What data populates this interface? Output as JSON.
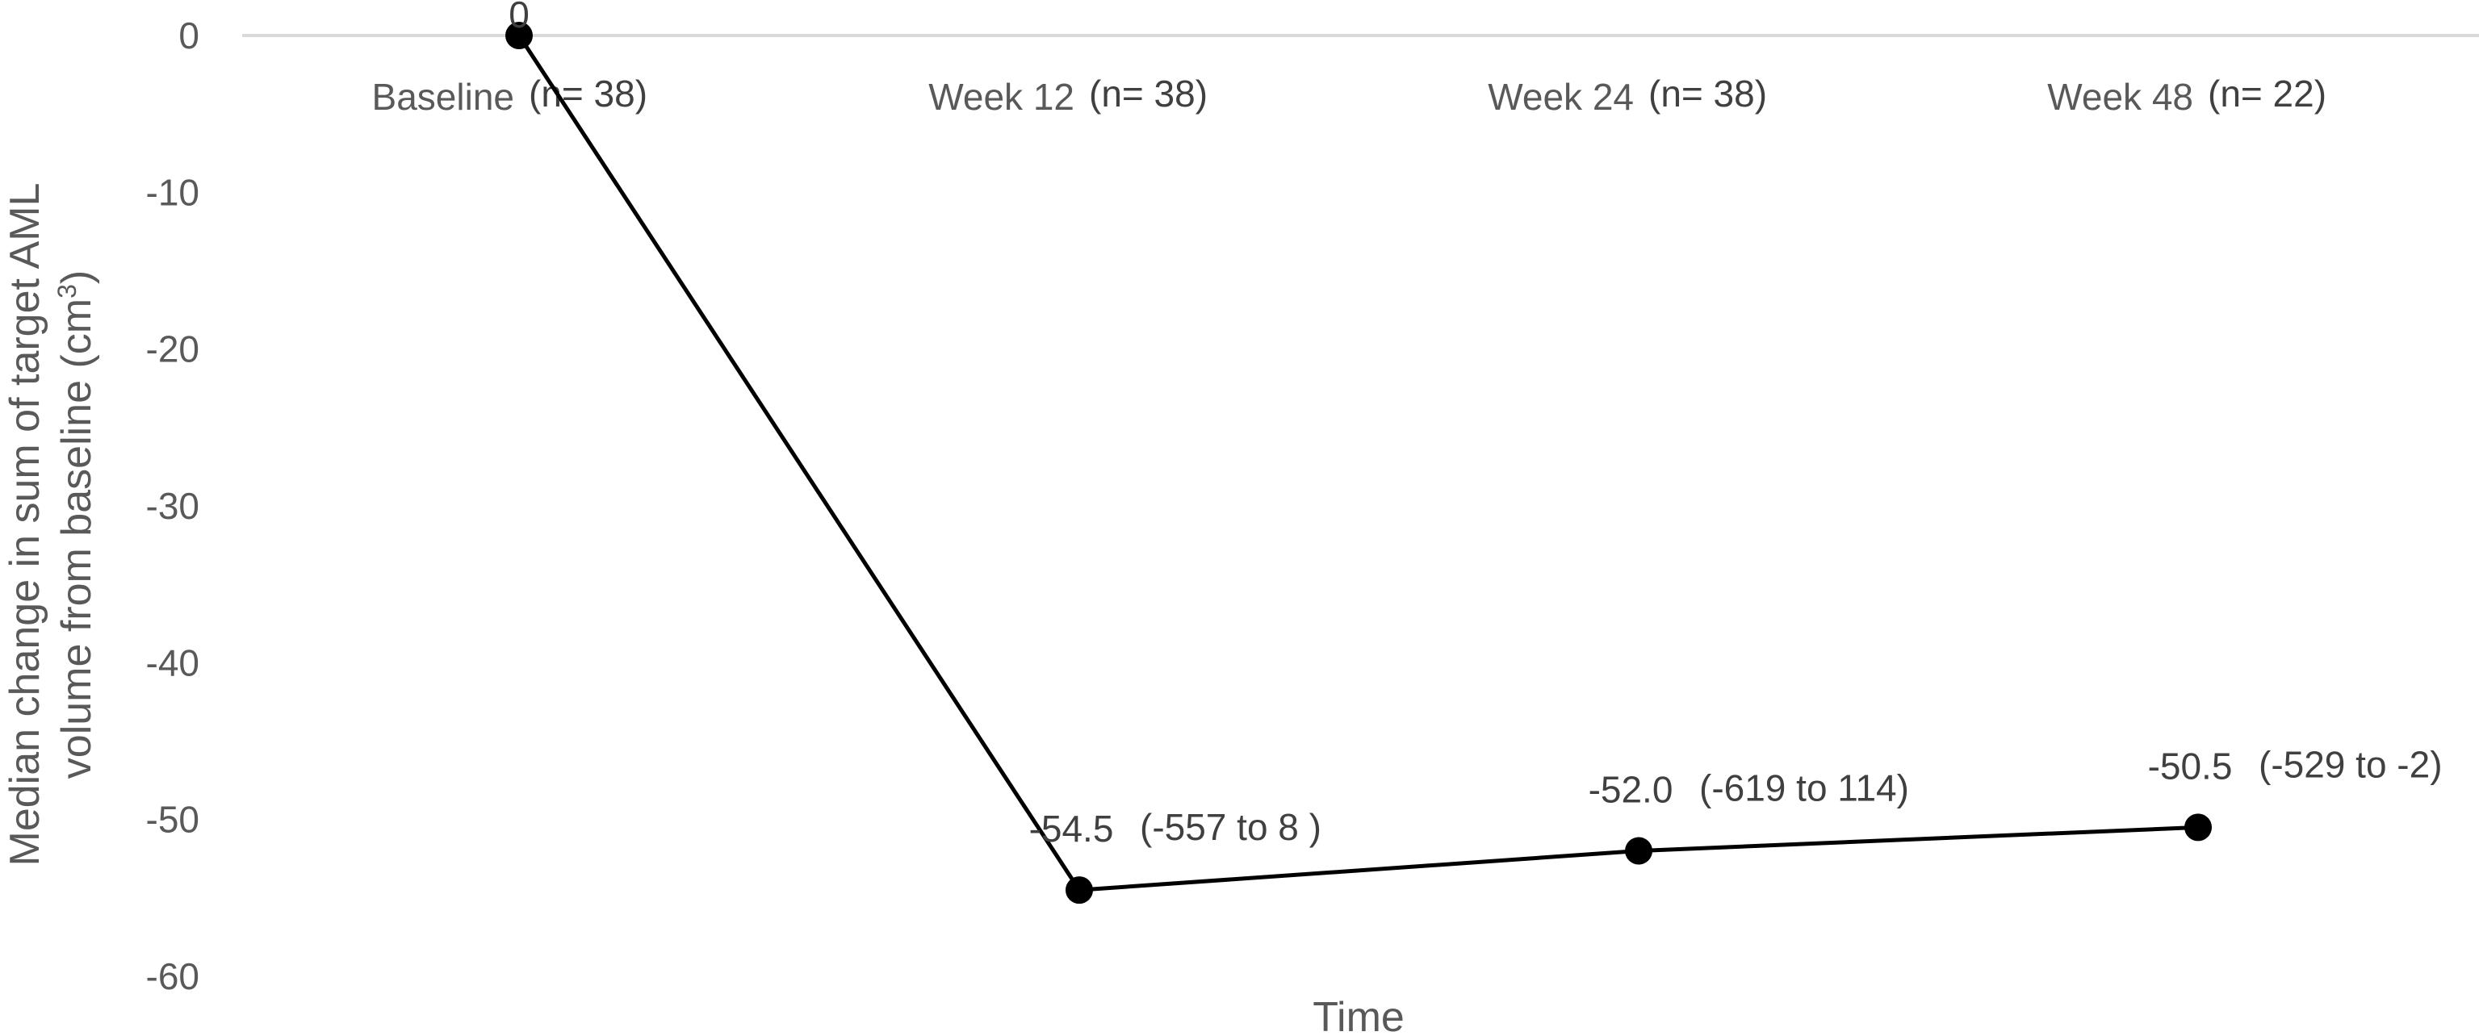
{
  "chart_data": {
    "type": "line",
    "categories": [
      "Baseline",
      "Week 12",
      "Week 24",
      "Week 48"
    ],
    "sample_sizes": [
      "(n= 38)",
      "(n= 38)",
      "(n= 38)",
      "(n= 22)"
    ],
    "series": [
      {
        "values": [
          0,
          -54.5,
          -52.0,
          -50.5
        ],
        "value_labels": [
          "0",
          "-54.5",
          "-52.0",
          "-50.5"
        ],
        "ranges": [
          "",
          "(-557 to 8 )",
          "(-619 to 114)",
          "(-529 to -2)"
        ]
      }
    ],
    "xlabel": "Time",
    "ylabel_line1": "Median change in sum of target AML",
    "ylabel_line2_prefix": "volume  from baseline (cm",
    "ylabel_superscript": "3",
    "ylabel_line2_suffix": ")",
    "ylim": [
      -60,
      0
    ],
    "yticks": [
      0,
      -10,
      -20,
      -30,
      -40,
      -50,
      -60
    ],
    "grid": false,
    "colors": {
      "line": "#000000",
      "marker": "#000000",
      "zero_line": "#d9d9d9",
      "text": "#595959"
    }
  }
}
